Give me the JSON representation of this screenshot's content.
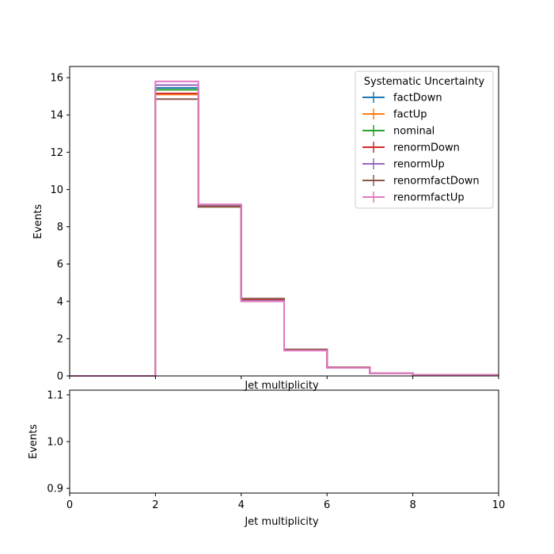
{
  "chart_data": [
    {
      "type": "line",
      "step": true,
      "xlabel": "Jet multiplicity",
      "ylabel": "Events",
      "xlim": [
        0,
        10
      ],
      "ylim": [
        0,
        16.6
      ],
      "x_ticks": [
        0,
        2,
        4,
        6,
        8,
        10
      ],
      "y_ticks": [
        0,
        2,
        4,
        6,
        8,
        10,
        12,
        14,
        16
      ],
      "y_tick_labels": [
        "0",
        "2",
        "4",
        "6",
        "8",
        "10",
        "12",
        "14",
        "16"
      ],
      "bin_edges": [
        0,
        1,
        2,
        3,
        4,
        5,
        6,
        7,
        8,
        9,
        10
      ],
      "legend_title": "Systematic Uncertainty",
      "legend_position": "upper right",
      "grid": false,
      "series": [
        {
          "name": "factDown",
          "color": "#1f77b4",
          "values": [
            0,
            0,
            15.45,
            9.15,
            4.1,
            1.4,
            0.45,
            0.15,
            0.05,
            0.05
          ]
        },
        {
          "name": "factUp",
          "color": "#ff7f0e",
          "values": [
            0,
            0,
            15.1,
            9.1,
            4.05,
            1.38,
            0.45,
            0.15,
            0.05,
            0.05
          ]
        },
        {
          "name": "nominal",
          "color": "#2ca02c",
          "values": [
            0,
            0,
            15.35,
            9.12,
            4.08,
            1.4,
            0.45,
            0.15,
            0.05,
            0.05
          ]
        },
        {
          "name": "renormDown",
          "color": "#d62728",
          "values": [
            0,
            0,
            15.15,
            9.08,
            4.12,
            1.41,
            0.46,
            0.15,
            0.05,
            0.05
          ]
        },
        {
          "name": "renormUp",
          "color": "#9467bd",
          "values": [
            0,
            0,
            15.6,
            9.18,
            4.03,
            1.37,
            0.44,
            0.14,
            0.05,
            0.05
          ]
        },
        {
          "name": "renormfactDown",
          "color": "#8c564b",
          "values": [
            0,
            0,
            14.85,
            9.07,
            4.15,
            1.42,
            0.46,
            0.15,
            0.05,
            0.05
          ]
        },
        {
          "name": "renormfactUp",
          "color": "#e377c2",
          "values": [
            0,
            0,
            15.8,
            9.2,
            4.0,
            1.36,
            0.44,
            0.14,
            0.05,
            0.05
          ]
        }
      ]
    },
    {
      "type": "line",
      "xlabel": "Jet multiplicity",
      "ylabel": "Events",
      "xlim": [
        0,
        10
      ],
      "ylim": [
        0.89,
        1.11
      ],
      "x_ticks": [
        0,
        2,
        4,
        6,
        8,
        10
      ],
      "y_ticks": [
        0.9,
        1.0,
        1.1
      ],
      "y_tick_labels": [
        "0.9",
        "1.0",
        "1.1"
      ],
      "series": []
    }
  ]
}
